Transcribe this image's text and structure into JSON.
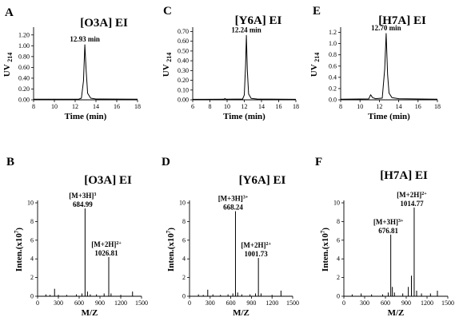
{
  "chart_data": [
    {
      "id": "A",
      "type": "line",
      "panel_label": "A",
      "title": "[O3A] EI",
      "xlabel": "Time (min)",
      "ylabel": "UV",
      "ylabel_sub": "214",
      "xlim": [
        8,
        18
      ],
      "ylim": [
        0,
        1.3
      ],
      "xticks": [
        8,
        10,
        12,
        14,
        16,
        18
      ],
      "xtick_labels": [
        "8",
        "10",
        "12",
        "14",
        "16",
        "18"
      ],
      "yticks": [
        0,
        0.2,
        0.4,
        0.6,
        0.8,
        1.0,
        1.2
      ],
      "ytick_labels": [
        "0.00",
        "0.20",
        "0.40",
        "0.60",
        "0.80",
        "1.00",
        "1.20"
      ],
      "series": [
        {
          "x": [
            8,
            12.3,
            12.6,
            12.8,
            12.93,
            13.05,
            13.2,
            13.5,
            14,
            18
          ],
          "y": [
            0.01,
            0.01,
            0.03,
            0.35,
            1.02,
            0.55,
            0.12,
            0.03,
            0.015,
            0.01
          ]
        }
      ],
      "annotations": [
        {
          "text": "12.93 min",
          "x": 12.93,
          "y": 1.02
        }
      ]
    },
    {
      "id": "C",
      "type": "line",
      "panel_label": "C",
      "title": "[Y6A] EI",
      "xlabel": "Time (min)",
      "ylabel": "UV",
      "ylabel_sub": "214",
      "xlim": [
        6,
        18
      ],
      "ylim": [
        0,
        0.72
      ],
      "xticks": [
        6,
        8,
        10,
        12,
        14,
        16,
        18
      ],
      "xtick_labels": [
        "6",
        "8",
        "10",
        "12",
        "14",
        "16",
        "18"
      ],
      "yticks": [
        0,
        0.1,
        0.2,
        0.3,
        0.4,
        0.5,
        0.6,
        0.7
      ],
      "ytick_labels": [
        "0.00",
        "0.10",
        "0.20",
        "0.30",
        "0.40",
        "0.50",
        "0.60",
        "0.70"
      ],
      "series": [
        {
          "x": [
            6,
            9.6,
            9.75,
            9.9,
            11.8,
            12.0,
            12.15,
            12.24,
            12.35,
            12.5,
            12.8,
            13.5,
            18
          ],
          "y": [
            0.005,
            0.006,
            0.012,
            0.006,
            0.008,
            0.05,
            0.35,
            0.66,
            0.3,
            0.06,
            0.015,
            0.008,
            0.005
          ]
        }
      ],
      "annotations": [
        {
          "text": "12.24 min",
          "x": 12.24,
          "y": 0.66
        }
      ]
    },
    {
      "id": "E",
      "type": "line",
      "panel_label": "E",
      "title": "[H7A] EI",
      "xlabel": "Time (min)",
      "ylabel": "UV",
      "ylabel_sub": "214",
      "xlim": [
        8,
        18
      ],
      "ylim": [
        0,
        1.25
      ],
      "xticks": [
        8,
        10,
        12,
        14,
        16,
        18
      ],
      "xtick_labels": [
        "8",
        "10",
        "12",
        "14",
        "16",
        "18"
      ],
      "yticks": [
        0,
        0.2,
        0.4,
        0.6,
        0.8,
        1.0,
        1.2
      ],
      "ytick_labels": [
        "0.0",
        "0.2",
        "0.4",
        "0.6",
        "0.8",
        "1.0",
        "1.2"
      ],
      "series": [
        {
          "x": [
            8,
            10.9,
            11.1,
            11.3,
            11.6,
            12.3,
            12.55,
            12.7,
            12.85,
            13.0,
            13.3,
            14,
            18
          ],
          "y": [
            0.01,
            0.015,
            0.09,
            0.04,
            0.02,
            0.03,
            0.55,
            1.18,
            0.45,
            0.12,
            0.04,
            0.02,
            0.01
          ]
        }
      ],
      "annotations": [
        {
          "text": "12.70 min",
          "x": 12.7,
          "y": 1.18
        }
      ]
    },
    {
      "id": "B",
      "type": "bar",
      "panel_label": "B",
      "title": "[O3A] EI",
      "xlabel": "M/Z",
      "ylabel": "Inten.(x10",
      "ylabel_sup": "7",
      "ylabel_end": ")",
      "xlim": [
        0,
        1500
      ],
      "ylim": [
        0,
        10
      ],
      "xticks": [
        0,
        300,
        600,
        900,
        1200,
        1500
      ],
      "xtick_labels": [
        "0",
        "300",
        "600",
        "900",
        "1200",
        "1500"
      ],
      "yticks": [
        0,
        2,
        4,
        6,
        8,
        10
      ],
      "ytick_labels": [
        "0",
        "2",
        "4",
        "6",
        "8",
        "10"
      ],
      "peaks": [
        [
          120,
          0.2
        ],
        [
          180,
          0.15
        ],
        [
          245,
          0.8
        ],
        [
          300,
          0.15
        ],
        [
          420,
          0.15
        ],
        [
          560,
          0.2
        ],
        [
          640,
          0.3
        ],
        [
          684.99,
          9.4
        ],
        [
          720,
          0.5
        ],
        [
          760,
          0.2
        ],
        [
          850,
          0.2
        ],
        [
          960,
          0.3
        ],
        [
          1026.81,
          4.2
        ],
        [
          1060,
          0.3
        ],
        [
          1200,
          0.15
        ],
        [
          1370,
          0.5
        ]
      ],
      "annotations": [
        {
          "lines": [
            "[M+3H]",
            "684.99"
          ],
          "sup": "3",
          "x": 684.99,
          "y": 9.4
        },
        {
          "lines": [
            "[M+2H]",
            "1026.81"
          ],
          "sup": "2+",
          "x": 1026.81,
          "y": 4.2
        }
      ]
    },
    {
      "id": "D",
      "type": "bar",
      "panel_label": "D",
      "title": "[Y6A] EI",
      "xlabel": "M/Z",
      "ylabel": "Inten.(x10",
      "ylabel_sup": "7",
      "ylabel_end": ")",
      "xlim": [
        0,
        1500
      ],
      "ylim": [
        0,
        10
      ],
      "xticks": [
        0,
        300,
        600,
        900,
        1200,
        1500
      ],
      "xtick_labels": [
        "0",
        "300",
        "600",
        "900",
        "1200",
        "1500"
      ],
      "yticks": [
        0,
        2,
        4,
        6,
        8,
        10
      ],
      "ytick_labels": [
        "0",
        "2",
        "4",
        "6",
        "8",
        "10"
      ],
      "peaks": [
        [
          130,
          0.2
        ],
        [
          200,
          0.15
        ],
        [
          265,
          0.7
        ],
        [
          340,
          0.2
        ],
        [
          450,
          0.15
        ],
        [
          560,
          0.2
        ],
        [
          630,
          0.3
        ],
        [
          668.24,
          9.1
        ],
        [
          700,
          0.4
        ],
        [
          760,
          0.2
        ],
        [
          880,
          0.2
        ],
        [
          960,
          0.3
        ],
        [
          1001.73,
          4.1
        ],
        [
          1040,
          0.3
        ],
        [
          1200,
          0.15
        ],
        [
          1330,
          0.6
        ]
      ],
      "annotations": [
        {
          "lines": [
            "[M+3H]",
            "668.24"
          ],
          "sup": "3+",
          "x": 668.24,
          "y": 9.1
        },
        {
          "lines": [
            "[M+2H]",
            "1001.73"
          ],
          "sup": "2+",
          "x": 1001.73,
          "y": 4.1
        }
      ]
    },
    {
      "id": "F",
      "type": "bar",
      "panel_label": "F",
      "title": "[H7A] EI",
      "xlabel": "M/Z",
      "ylabel": "Inten.(x10",
      "ylabel_sup": "7",
      "ylabel_end": ")",
      "xlim": [
        0,
        1500
      ],
      "ylim": [
        0,
        10
      ],
      "xticks": [
        0,
        300,
        600,
        900,
        1200,
        1500
      ],
      "xtick_labels": [
        "0",
        "300",
        "600",
        "900",
        "1200",
        "1500"
      ],
      "yticks": [
        0,
        2,
        4,
        6,
        8,
        10
      ],
      "ytick_labels": [
        "0",
        "2",
        "4",
        "6",
        "8",
        "10"
      ],
      "peaks": [
        [
          120,
          0.2
        ],
        [
          250,
          0.3
        ],
        [
          400,
          0.2
        ],
        [
          560,
          0.2
        ],
        [
          640,
          0.4
        ],
        [
          676.81,
          6.6
        ],
        [
          700,
          1.0
        ],
        [
          730,
          0.4
        ],
        [
          850,
          0.3
        ],
        [
          930,
          1.0
        ],
        [
          975,
          2.2
        ],
        [
          1014.77,
          9.5
        ],
        [
          1050,
          0.6
        ],
        [
          1120,
          0.3
        ],
        [
          1250,
          0.3
        ],
        [
          1350,
          0.6
        ]
      ],
      "annotations": [
        {
          "lines": [
            "[M+3H]",
            "676.81"
          ],
          "sup": "3+",
          "x": 676.81,
          "y": 6.6
        },
        {
          "lines": [
            "[M+2H]",
            "1014.77"
          ],
          "sup": "2+",
          "x": 1014.77,
          "y": 9.5
        }
      ]
    }
  ]
}
